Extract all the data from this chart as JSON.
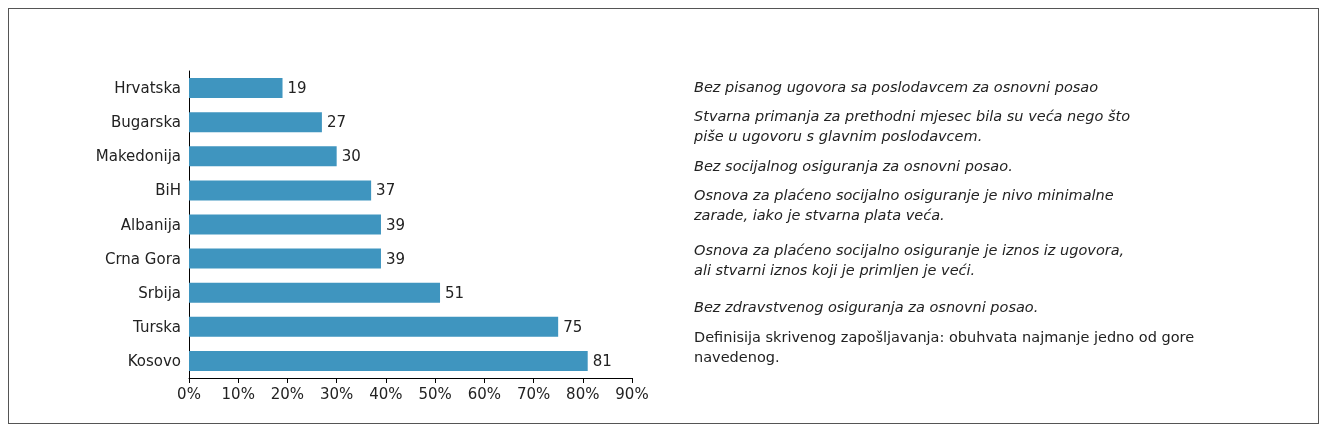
{
  "chart_data": {
    "type": "bar",
    "orientation": "horizontal",
    "categories": [
      "Hrvatska",
      "Bugarska",
      "Makedonija",
      "BiH",
      "Albanija",
      "Crna Gora",
      "Srbija",
      "Turska",
      "Kosovo"
    ],
    "values": [
      19,
      27,
      30,
      37,
      39,
      39,
      51,
      75,
      81
    ],
    "color": "#3f95bf",
    "data_labels": true,
    "xlim": [
      0,
      90
    ],
    "xticks": [
      {
        "value": 0,
        "label": "0%"
      },
      {
        "value": 10,
        "label": "10%"
      },
      {
        "value": 20,
        "label": "20%"
      },
      {
        "value": 30,
        "label": "30%"
      },
      {
        "value": 40,
        "label": "40%"
      },
      {
        "value": 50,
        "label": "50%"
      },
      {
        "value": 60,
        "label": "60%"
      },
      {
        "value": 70,
        "label": "70%"
      },
      {
        "value": 80,
        "label": "80%"
      },
      {
        "value": 90,
        "label": "90%"
      }
    ],
    "grid": false,
    "annotations": [
      "Bez pisanog ugovora sa poslodavcem za osnovni posao",
      "Stvarna primanja za prethodni mjesec bila su veća nego što piše u ugovoru s glavnim poslodavcem.",
      "Bez socijalnog osiguranja za osnovni posao.",
      "Osnova za plaćeno socijalno osiguranje je nivo minimalne zarade, iako je stvarna plata veća.",
      "Osnova za plaćeno socijalno osiguranje je iznos iz ugovora, ali stvarni iznos koji je primljen je veći.",
      "Bez zdravstvenog osiguranja za osnovni posao.",
      "Definisija skrivenog zapošljavanja: obuhvata najmanje jedno od gore navedenog."
    ]
  }
}
